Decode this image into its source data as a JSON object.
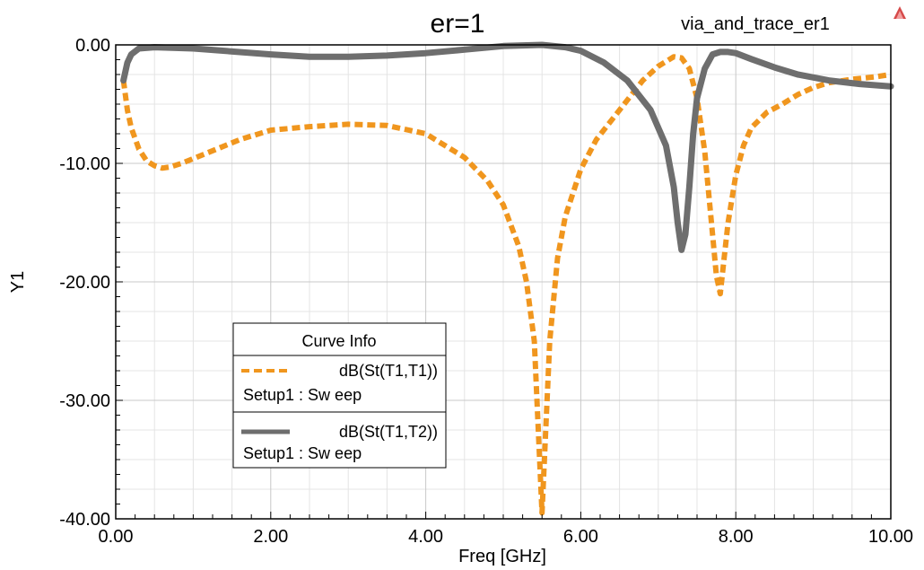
{
  "chart_data": {
    "type": "line",
    "title": "er=1",
    "subtitle": "via_and_trace_er1",
    "xlabel": "Freq [GHz]",
    "ylabel": "Y1",
    "xlim": [
      0,
      10
    ],
    "ylim": [
      -40,
      0
    ],
    "x_ticks": [
      "0.00",
      "2.00",
      "4.00",
      "6.00",
      "8.00",
      "10.00"
    ],
    "y_ticks": [
      "0.00",
      "-10.00",
      "-20.00",
      "-30.00",
      "-40.00"
    ],
    "grid": true,
    "legend": {
      "title": "Curve Info",
      "placement": "lower-left"
    },
    "series": [
      {
        "name": "dB(St(T1,T1))",
        "setup": "Setup1 : Sw eep",
        "color": "#f0961e",
        "style": "dashed",
        "x": [
          0.1,
          0.15,
          0.2,
          0.3,
          0.4,
          0.5,
          0.6,
          0.7,
          0.85,
          1.0,
          1.3,
          1.6,
          2.0,
          2.5,
          3.0,
          3.5,
          4.0,
          4.5,
          4.8,
          5.0,
          5.2,
          5.3,
          5.4,
          5.5,
          5.6,
          5.7,
          5.8,
          6.0,
          6.2,
          6.5,
          6.8,
          7.0,
          7.2,
          7.3,
          7.4,
          7.5,
          7.6,
          7.7,
          7.75,
          7.8,
          7.85,
          7.9,
          8.0,
          8.1,
          8.2,
          8.4,
          8.6,
          8.8,
          9.0,
          9.2,
          9.5,
          9.8,
          10.0
        ],
        "y": [
          -3.0,
          -5.5,
          -7.0,
          -8.8,
          -9.8,
          -10.2,
          -10.4,
          -10.3,
          -10.0,
          -9.6,
          -8.8,
          -8.0,
          -7.2,
          -6.9,
          -6.7,
          -6.8,
          -7.5,
          -9.5,
          -11.5,
          -13.5,
          -17.0,
          -20.0,
          -25.0,
          -39.5,
          -25.0,
          -18.0,
          -14.5,
          -10.5,
          -8.0,
          -5.5,
          -3.0,
          -1.8,
          -1.0,
          -1.1,
          -2.0,
          -4.5,
          -9.0,
          -16.0,
          -19.5,
          -21.0,
          -18.0,
          -15.0,
          -11.0,
          -8.5,
          -7.0,
          -5.7,
          -5.0,
          -4.2,
          -3.6,
          -3.2,
          -2.9,
          -2.7,
          -2.5
        ]
      },
      {
        "name": "dB(St(T1,T2))",
        "setup": "Setup1 : Sw eep",
        "color": "#6e6e6e",
        "style": "solid",
        "x": [
          0.1,
          0.15,
          0.2,
          0.3,
          0.5,
          1.0,
          2.0,
          2.5,
          3.0,
          3.5,
          4.0,
          4.5,
          5.0,
          5.5,
          5.8,
          6.0,
          6.3,
          6.6,
          6.9,
          7.1,
          7.2,
          7.25,
          7.3,
          7.35,
          7.4,
          7.45,
          7.5,
          7.6,
          7.7,
          7.8,
          7.9,
          8.0,
          8.2,
          8.5,
          8.8,
          9.2,
          9.6,
          10.0
        ],
        "y": [
          -3.0,
          -1.5,
          -0.8,
          -0.3,
          -0.2,
          -0.3,
          -0.8,
          -1.0,
          -1.0,
          -0.9,
          -0.7,
          -0.4,
          -0.1,
          0.0,
          -0.2,
          -0.5,
          -1.5,
          -3.0,
          -5.5,
          -8.5,
          -12.0,
          -15.0,
          -17.3,
          -16.0,
          -12.0,
          -7.5,
          -4.5,
          -2.0,
          -0.8,
          -0.6,
          -0.6,
          -0.7,
          -1.2,
          -1.9,
          -2.5,
          -3.0,
          -3.3,
          -3.5
        ]
      }
    ]
  }
}
